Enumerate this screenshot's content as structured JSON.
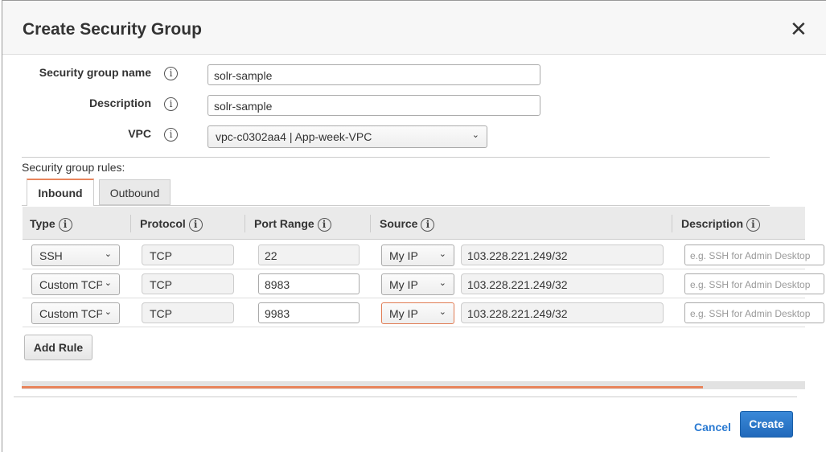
{
  "dialog": {
    "title": "Create Security Group",
    "close_icon": "close-icon"
  },
  "form": {
    "name_label": "Security group name",
    "name_value": "solr-sample",
    "description_label": "Description",
    "description_value": "solr-sample",
    "vpc_label": "VPC",
    "vpc_value": "vpc-c0302aa4 | App-week-VPC"
  },
  "rules": {
    "label": "Security group rules:",
    "tabs": [
      {
        "label": "Inbound",
        "active": true
      },
      {
        "label": "Outbound",
        "active": false
      }
    ],
    "columns": [
      "Type",
      "Protocol",
      "Port Range",
      "Source",
      "Description"
    ],
    "rows": [
      {
        "type": "SSH",
        "protocol": "TCP",
        "port": "22",
        "source": "My IP",
        "cidr": "103.228.221.249/32",
        "description_placeholder": "e.g. SSH for Admin Desktop"
      },
      {
        "type": "Custom TCP Rule",
        "protocol": "TCP",
        "port": "8983",
        "source": "My IP",
        "cidr": "103.228.221.249/32",
        "description_placeholder": "e.g. SSH for Admin Desktop"
      },
      {
        "type": "Custom TCP Rule",
        "protocol": "TCP",
        "port": "9983",
        "source": "My IP",
        "cidr": "103.228.221.249/32",
        "description_placeholder": "e.g. SSH for Admin Desktop"
      }
    ],
    "add_rule_label": "Add Rule"
  },
  "scroll": {
    "position_percent": 87
  },
  "footer": {
    "cancel_label": "Cancel",
    "create_label": "Create"
  },
  "colors": {
    "accent": "#e8845c",
    "primary": "#2a75c7",
    "link": "#2a7ad2"
  }
}
